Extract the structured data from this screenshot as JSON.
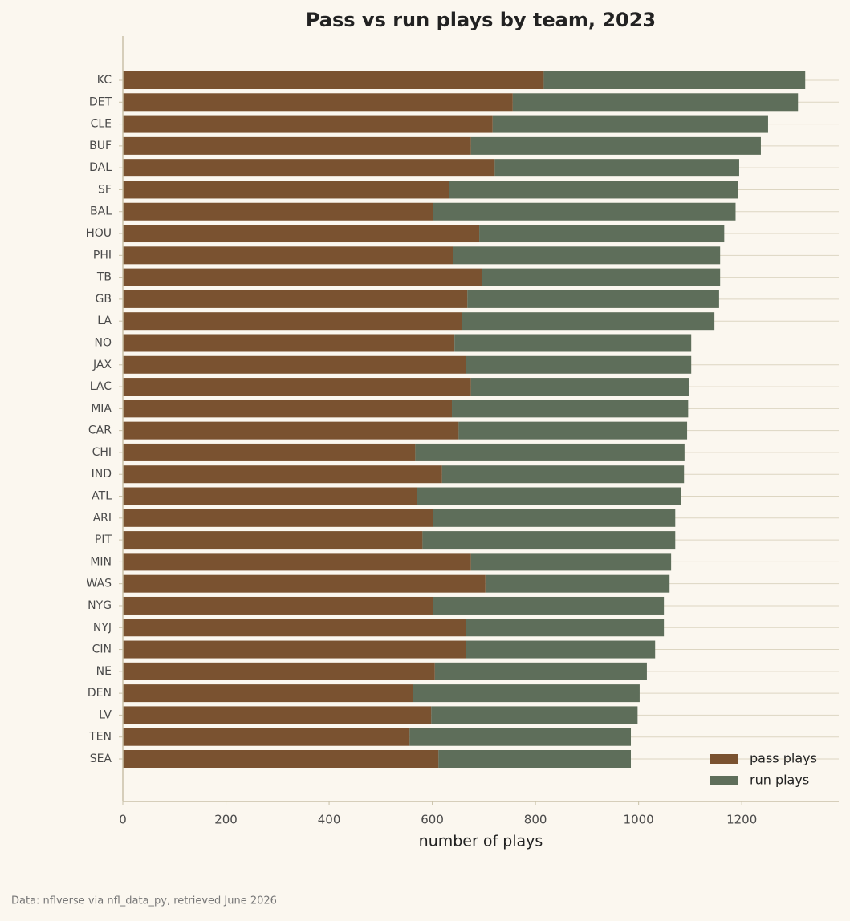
{
  "chart_data": {
    "type": "stacked-barh",
    "title": "Pass vs run plays by team, 2023",
    "x_label": "number of plays",
    "source": "Data: nflverse via nfl_data_py, retrieved June 2026",
    "categories": [
      "KC",
      "DET",
      "CLE",
      "BUF",
      "DAL",
      "SF",
      "BAL",
      "HOU",
      "PHI",
      "TB",
      "GB",
      "LA",
      "NO",
      "JAX",
      "LAC",
      "MIA",
      "CAR",
      "CHI",
      "IND",
      "ATL",
      "ARI",
      "PIT",
      "MIN",
      "WAS",
      "NYG",
      "NYJ",
      "CIN",
      "NE",
      "DEN",
      "LV",
      "TEN",
      "SEA"
    ],
    "series": [
      {
        "name": "pass plays",
        "color": "#7a5230",
        "values": [
          816,
          756,
          717,
          675,
          721,
          633,
          601,
          691,
          641,
          697,
          668,
          657,
          643,
          665,
          675,
          638,
          651,
          567,
          619,
          570,
          602,
          581,
          675,
          703,
          601,
          665,
          665,
          605,
          563,
          598,
          556,
          612
        ]
      },
      {
        "name": "run plays",
        "color": "#5e6e5a",
        "values": [
          507,
          553,
          534,
          562,
          474,
          559,
          587,
          475,
          517,
          461,
          488,
          490,
          459,
          437,
          422,
          458,
          443,
          522,
          469,
          513,
          469,
          490,
          388,
          357,
          448,
          384,
          367,
          411,
          439,
          400,
          429,
          373
        ]
      }
    ],
    "xlim": [
      0,
      1388
    ],
    "xticks": [
      0,
      200,
      400,
      600,
      800,
      1000,
      1200
    ],
    "grid": true,
    "legend": "lower right"
  }
}
